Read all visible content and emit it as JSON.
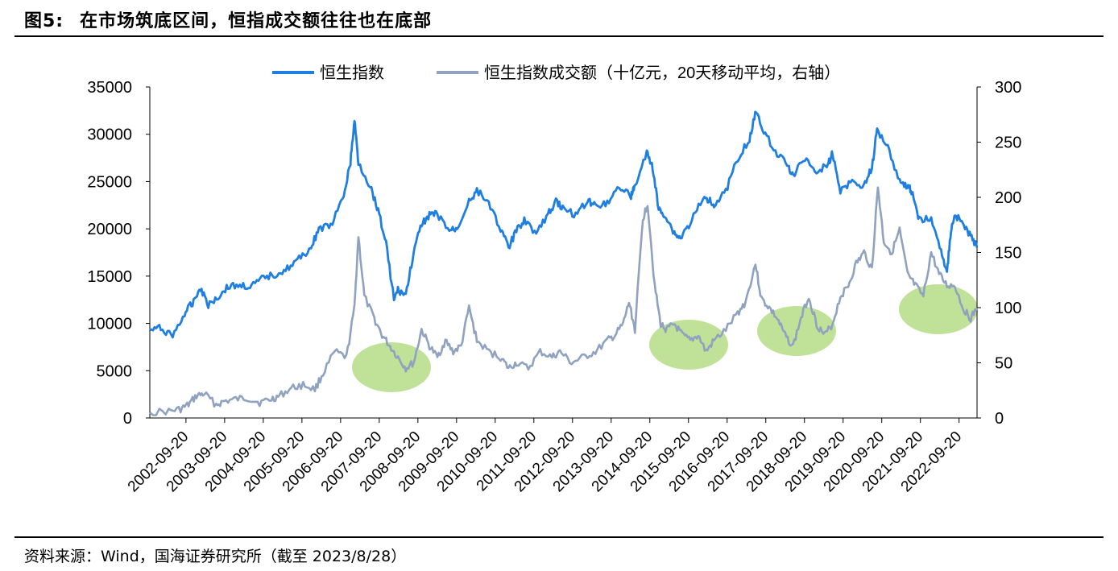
{
  "header": {
    "figure_no": "图5:",
    "title": "在市场筑底区间，恒指成交额往往也在底部"
  },
  "footer": {
    "source": "资料来源：Wind，国海证券研究所（截至 2023/8/28）"
  },
  "colors": {
    "index": "#1f7fe0",
    "turnover": "#8fa2bf",
    "highlight": "#b5dc86"
  },
  "chart_data": {
    "type": "line",
    "title": "在市场筑底区间，恒指成交额往往也在底部",
    "legend": [
      "恒生指数",
      "恒生指数成交额（十亿元，20天移动平均，右轴）"
    ],
    "legend_position": "top",
    "x_tick_labels": [
      "2002-09-20",
      "2003-09-20",
      "2004-09-20",
      "2005-09-20",
      "2006-09-20",
      "2007-09-20",
      "2008-09-20",
      "2009-09-20",
      "2010-09-20",
      "2011-09-20",
      "2012-09-20",
      "2013-09-20",
      "2014-09-20",
      "2015-09-20",
      "2016-09-20",
      "2017-09-20",
      "2018-09-20",
      "2019-09-20",
      "2020-09-20",
      "2021-09-20",
      "2022-09-20"
    ],
    "xlim": [
      2002.72,
      2023.66
    ],
    "y_left": {
      "min": 0,
      "max": 35000,
      "ticks": [
        0,
        5000,
        10000,
        15000,
        20000,
        25000,
        30000,
        35000
      ]
    },
    "y_right": {
      "min": 0,
      "max": 300,
      "ticks": [
        0,
        50,
        100,
        150,
        200,
        250,
        300
      ]
    },
    "series": [
      {
        "name": "恒生指数",
        "axis": "left",
        "x": [
          2002.72,
          2003.0,
          2003.3,
          2003.6,
          2003.8,
          2004.0,
          2004.2,
          2004.45,
          2004.7,
          2005.0,
          2005.3,
          2005.6,
          2005.9,
          2006.2,
          2006.5,
          2006.8,
          2007.0,
          2007.3,
          2007.6,
          2007.8,
          2007.9,
          2008.0,
          2008.3,
          2008.5,
          2008.7,
          2008.9,
          2009.0,
          2009.2,
          2009.4,
          2009.6,
          2009.8,
          2010.0,
          2010.3,
          2010.5,
          2010.8,
          2011.0,
          2011.3,
          2011.6,
          2011.8,
          2012.0,
          2012.2,
          2012.5,
          2012.8,
          2013.0,
          2013.2,
          2013.5,
          2013.8,
          2014.0,
          2014.3,
          2014.6,
          2014.9,
          2015.0,
          2015.3,
          2015.45,
          2015.6,
          2015.75,
          2016.0,
          2016.15,
          2016.4,
          2016.7,
          2016.9,
          2017.0,
          2017.3,
          2017.6,
          2017.9,
          2018.07,
          2018.3,
          2018.6,
          2018.9,
          2019.0,
          2019.3,
          2019.6,
          2019.9,
          2020.0,
          2020.2,
          2020.5,
          2020.8,
          2021.0,
          2021.13,
          2021.4,
          2021.7,
          2021.9,
          2022.0,
          2022.2,
          2022.5,
          2022.75,
          2022.9,
          2023.0,
          2023.1,
          2023.3,
          2023.5,
          2023.66
        ],
        "values": [
          9300,
          9500,
          8700,
          11000,
          12200,
          13800,
          12000,
          12800,
          13900,
          14000,
          13900,
          14800,
          15200,
          15800,
          16800,
          18000,
          20000,
          20300,
          23000,
          27000,
          31500,
          27000,
          24500,
          22000,
          18500,
          12500,
          13500,
          13000,
          17500,
          20500,
          21500,
          21500,
          19800,
          20000,
          23000,
          24000,
          22800,
          20000,
          18000,
          19800,
          21000,
          19500,
          21500,
          23000,
          22000,
          21500,
          23000,
          22500,
          22800,
          24500,
          23500,
          24500,
          28000,
          26500,
          22000,
          21500,
          19500,
          19000,
          20600,
          23000,
          23200,
          22500,
          24000,
          27500,
          29500,
          32500,
          30000,
          28000,
          26500,
          25500,
          27500,
          26000,
          27000,
          28000,
          24000,
          25000,
          24500,
          26500,
          30500,
          28700,
          25000,
          24500,
          24000,
          21000,
          21000,
          17500,
          15500,
          19800,
          21500,
          20500,
          19200,
          18000
        ]
      },
      {
        "name": "恒生指数成交额（十亿元，20天移动平均，右轴）",
        "axis": "right",
        "x": [
          2002.72,
          2003.2,
          2003.5,
          2003.7,
          2003.9,
          2004.1,
          2004.4,
          2004.6,
          2004.9,
          2005.2,
          2005.5,
          2005.8,
          2006.0,
          2006.3,
          2006.6,
          2006.9,
          2007.1,
          2007.4,
          2007.7,
          2007.9,
          2008.0,
          2008.15,
          2008.4,
          2008.6,
          2008.8,
          2009.0,
          2009.2,
          2009.4,
          2009.6,
          2009.8,
          2010.0,
          2010.2,
          2010.4,
          2010.6,
          2010.8,
          2011.0,
          2011.3,
          2011.6,
          2011.8,
          2012.0,
          2012.3,
          2012.6,
          2012.9,
          2013.1,
          2013.4,
          2013.7,
          2014.0,
          2014.3,
          2014.5,
          2014.7,
          2014.85,
          2015.0,
          2015.2,
          2015.32,
          2015.5,
          2015.65,
          2015.8,
          2016.0,
          2016.2,
          2016.4,
          2016.6,
          2016.8,
          2017.0,
          2017.3,
          2017.6,
          2017.8,
          2018.05,
          2018.2,
          2018.4,
          2018.6,
          2018.8,
          2019.0,
          2019.2,
          2019.4,
          2019.6,
          2019.8,
          2020.0,
          2020.2,
          2020.4,
          2020.6,
          2020.8,
          2021.0,
          2021.15,
          2021.3,
          2021.5,
          2021.7,
          2021.9,
          2022.1,
          2022.3,
          2022.5,
          2022.7,
          2022.9,
          2023.1,
          2023.3,
          2023.5,
          2023.66
        ],
        "values": [
          5,
          6,
          8,
          12,
          20,
          22,
          12,
          15,
          17,
          18,
          14,
          17,
          20,
          27,
          30,
          26,
          40,
          60,
          55,
          100,
          165,
          110,
          90,
          75,
          65,
          55,
          45,
          50,
          80,
          65,
          55,
          70,
          60,
          65,
          100,
          70,
          60,
          55,
          45,
          50,
          45,
          60,
          55,
          60,
          50,
          55,
          60,
          70,
          75,
          85,
          105,
          80,
          180,
          195,
          120,
          85,
          80,
          85,
          75,
          70,
          75,
          60,
          70,
          80,
          95,
          105,
          140,
          108,
          100,
          90,
          75,
          65,
          90,
          110,
          85,
          75,
          85,
          110,
          120,
          140,
          150,
          135,
          210,
          160,
          150,
          170,
          130,
          120,
          110,
          150,
          130,
          120,
          120,
          100,
          90,
          100
        ]
      }
    ],
    "highlight_ellipses": [
      "2008-2009 low",
      "2016 low",
      "2019 low",
      "2022-2023 low"
    ]
  }
}
